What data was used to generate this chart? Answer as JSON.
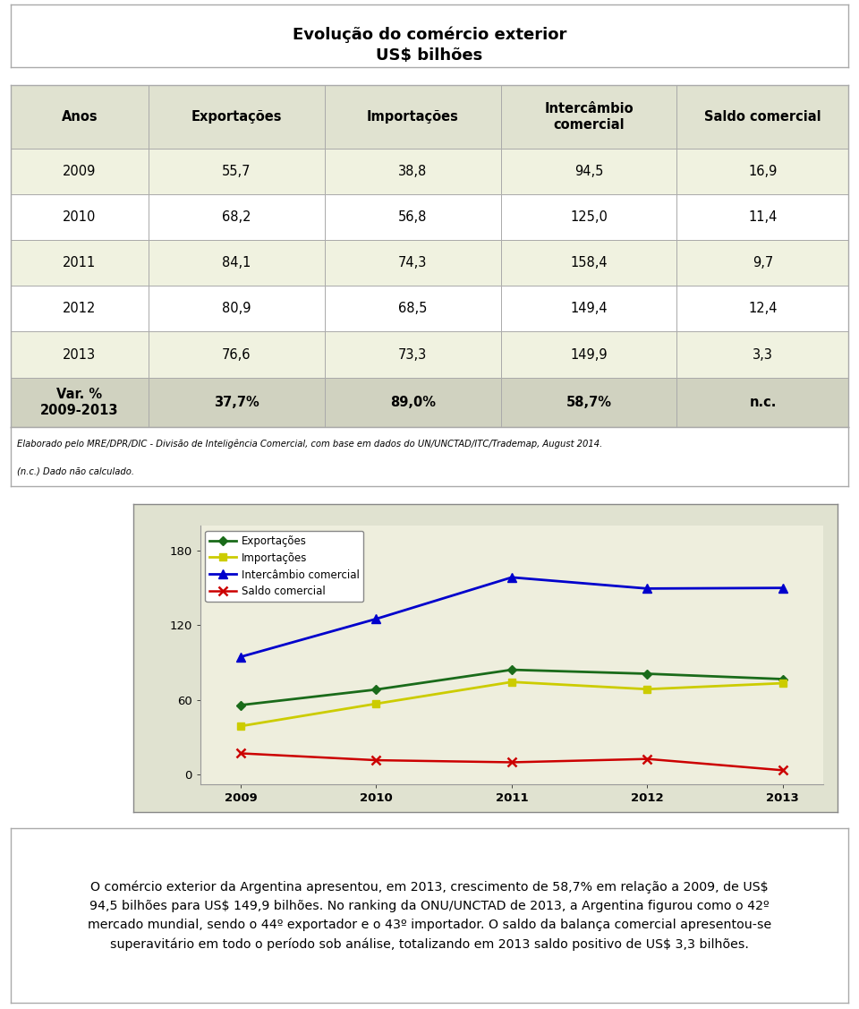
{
  "title_line1": "Evolução do comércio exterior",
  "title_line2": "US$ bilhões",
  "table_headers": [
    "Anos",
    "Exportações",
    "Importações",
    "Intercâmbio\ncomercial",
    "Saldo comercial"
  ],
  "years": [
    "2009",
    "2010",
    "2011",
    "2012",
    "2013"
  ],
  "exportacoes": [
    55.7,
    68.2,
    84.1,
    80.9,
    76.6
  ],
  "importacoes": [
    38.8,
    56.8,
    74.3,
    68.5,
    73.3
  ],
  "intercambio": [
    94.5,
    125.0,
    158.4,
    149.4,
    149.9
  ],
  "saldo": [
    16.9,
    11.4,
    9.7,
    12.4,
    3.3
  ],
  "table_data": [
    [
      "2009",
      "55,7",
      "38,8",
      "94,5",
      "16,9"
    ],
    [
      "2010",
      "68,2",
      "56,8",
      "125,0",
      "11,4"
    ],
    [
      "2011",
      "84,1",
      "74,3",
      "158,4",
      "9,7"
    ],
    [
      "2012",
      "80,9",
      "68,5",
      "149,4",
      "12,4"
    ],
    [
      "2013",
      "76,6",
      "73,3",
      "149,9",
      "3,3"
    ]
  ],
  "var_row": [
    "Var. %\n2009-2013",
    "37,7%",
    "89,0%",
    "58,7%",
    "n.c."
  ],
  "footnote1": "Elaborado pelo MRE/DPR/DIC - Divisão de Inteligência Comercial, com base em dados do UN/UNCTAD/ITC/Trademap, August 2014.",
  "footnote2": "(n.c.) Dado não calculado.",
  "bottom_text": "O comércio exterior da Argentina apresentou, em 2013, crescimento de 58,7% em relação a 2009, de US$\n94,5 bilhões para US$ 149,9 bilhões. No ranking da ONU/UNCTAD de 2013, a Argentina figurou como o 42º\nmercado mundial, sendo o 44º exportador e o 43º importador. O saldo da balança comercial apresentou-se\nsuperavitário em todo o período sob análise, totalizando em 2013 saldo positivo de US$ 3,3 bilhões.",
  "header_bg": "#e0e2d0",
  "row_bg_odd": "#f0f2e0",
  "row_bg_even": "#ffffff",
  "var_row_bg": "#d0d2c0",
  "table_border": "#aaaaaa",
  "chart_outer_bg": "#e0e2d0",
  "chart_plot_bg": "#eeeedd",
  "color_exportacoes": "#1a6b1a",
  "color_importacoes": "#cccc00",
  "color_intercambio": "#0000cc",
  "color_saldo": "#cc0000",
  "legend_labels": [
    "Exportações",
    "Importações",
    "Intercâmbio comercial",
    "Saldo comercial"
  ]
}
